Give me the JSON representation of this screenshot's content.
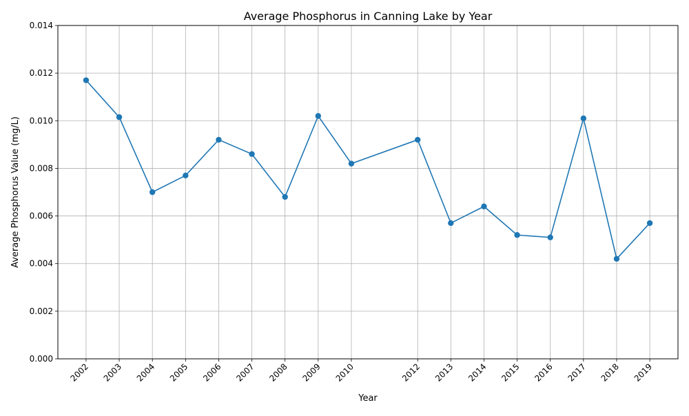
{
  "chart_data": {
    "type": "line",
    "title": "Average Phosphorus in Canning Lake by Year",
    "xlabel": "Year",
    "ylabel": "Average Phosphorus Value (mg/L)",
    "x": [
      2002,
      2003,
      2004,
      2005,
      2006,
      2007,
      2008,
      2009,
      2010,
      2012,
      2013,
      2014,
      2015,
      2016,
      2017,
      2018,
      2019
    ],
    "x_tick_labels": [
      "2002",
      "2003",
      "2004",
      "2005",
      "2006",
      "2007",
      "2008",
      "2009",
      "2010",
      "2012",
      "2013",
      "2014",
      "2015",
      "2016",
      "2017",
      "2018",
      "2019"
    ],
    "series": [
      {
        "values": [
          0.0117,
          0.01015,
          0.007,
          0.0077,
          0.0092,
          0.0086,
          0.0068,
          0.0102,
          0.0082,
          0.0092,
          0.0057,
          0.0064,
          0.0052,
          0.0051,
          0.0101,
          0.0042,
          0.0057
        ],
        "color": "#1f77b4",
        "marker": "circle"
      }
    ],
    "xlim": [
      2001.15,
      2019.85
    ],
    "ylim": [
      0,
      0.014
    ],
    "y_ticks": [
      0,
      0.002,
      0.004,
      0.006,
      0.008,
      0.01,
      0.012,
      0.014
    ],
    "y_tick_labels": [
      "0.000",
      "0.002",
      "0.004",
      "0.006",
      "0.008",
      "0.010",
      "0.012",
      "0.014"
    ],
    "grid": true,
    "grid_color": "#b0b0b0",
    "x_tick_rotation_deg": 45
  }
}
